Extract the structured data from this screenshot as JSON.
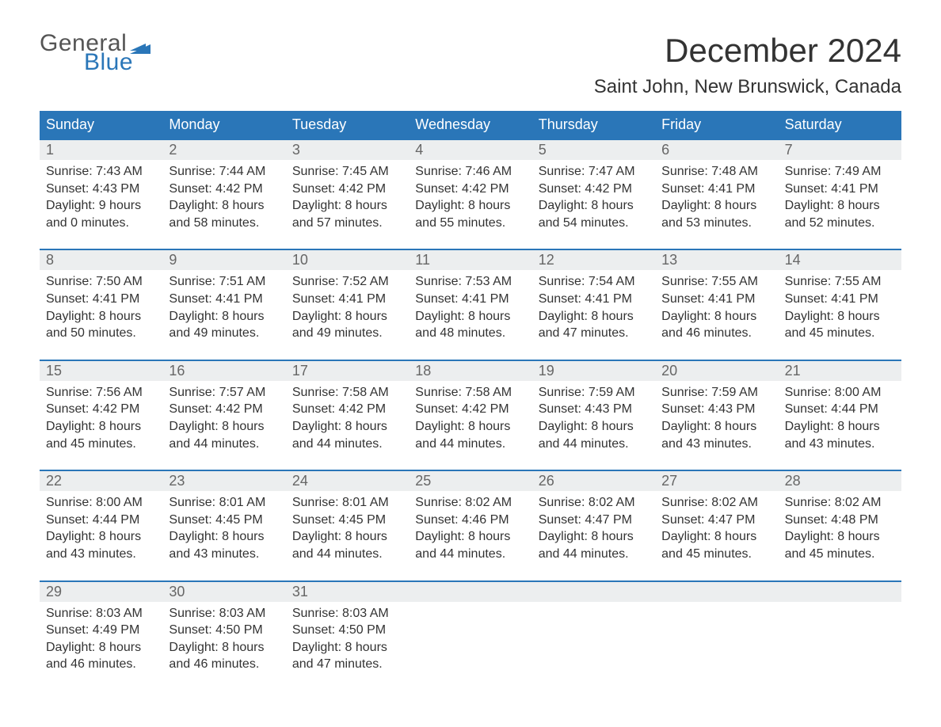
{
  "logo": {
    "word1": "General",
    "word2": "Blue",
    "flag_color": "#2a76b8"
  },
  "title": "December 2024",
  "location": "Saint John, New Brunswick, Canada",
  "colors": {
    "header_bg": "#2a76b8",
    "daynum_bg": "#eceeef",
    "text": "#333333",
    "muted": "#666666",
    "background": "#ffffff"
  },
  "weekdays": [
    "Sunday",
    "Monday",
    "Tuesday",
    "Wednesday",
    "Thursday",
    "Friday",
    "Saturday"
  ],
  "weeks": [
    [
      {
        "n": "1",
        "sunrise": "Sunrise: 7:43 AM",
        "sunset": "Sunset: 4:43 PM",
        "d1": "Daylight: 9 hours",
        "d2": "and 0 minutes."
      },
      {
        "n": "2",
        "sunrise": "Sunrise: 7:44 AM",
        "sunset": "Sunset: 4:42 PM",
        "d1": "Daylight: 8 hours",
        "d2": "and 58 minutes."
      },
      {
        "n": "3",
        "sunrise": "Sunrise: 7:45 AM",
        "sunset": "Sunset: 4:42 PM",
        "d1": "Daylight: 8 hours",
        "d2": "and 57 minutes."
      },
      {
        "n": "4",
        "sunrise": "Sunrise: 7:46 AM",
        "sunset": "Sunset: 4:42 PM",
        "d1": "Daylight: 8 hours",
        "d2": "and 55 minutes."
      },
      {
        "n": "5",
        "sunrise": "Sunrise: 7:47 AM",
        "sunset": "Sunset: 4:42 PM",
        "d1": "Daylight: 8 hours",
        "d2": "and 54 minutes."
      },
      {
        "n": "6",
        "sunrise": "Sunrise: 7:48 AM",
        "sunset": "Sunset: 4:41 PM",
        "d1": "Daylight: 8 hours",
        "d2": "and 53 minutes."
      },
      {
        "n": "7",
        "sunrise": "Sunrise: 7:49 AM",
        "sunset": "Sunset: 4:41 PM",
        "d1": "Daylight: 8 hours",
        "d2": "and 52 minutes."
      }
    ],
    [
      {
        "n": "8",
        "sunrise": "Sunrise: 7:50 AM",
        "sunset": "Sunset: 4:41 PM",
        "d1": "Daylight: 8 hours",
        "d2": "and 50 minutes."
      },
      {
        "n": "9",
        "sunrise": "Sunrise: 7:51 AM",
        "sunset": "Sunset: 4:41 PM",
        "d1": "Daylight: 8 hours",
        "d2": "and 49 minutes."
      },
      {
        "n": "10",
        "sunrise": "Sunrise: 7:52 AM",
        "sunset": "Sunset: 4:41 PM",
        "d1": "Daylight: 8 hours",
        "d2": "and 49 minutes."
      },
      {
        "n": "11",
        "sunrise": "Sunrise: 7:53 AM",
        "sunset": "Sunset: 4:41 PM",
        "d1": "Daylight: 8 hours",
        "d2": "and 48 minutes."
      },
      {
        "n": "12",
        "sunrise": "Sunrise: 7:54 AM",
        "sunset": "Sunset: 4:41 PM",
        "d1": "Daylight: 8 hours",
        "d2": "and 47 minutes."
      },
      {
        "n": "13",
        "sunrise": "Sunrise: 7:55 AM",
        "sunset": "Sunset: 4:41 PM",
        "d1": "Daylight: 8 hours",
        "d2": "and 46 minutes."
      },
      {
        "n": "14",
        "sunrise": "Sunrise: 7:55 AM",
        "sunset": "Sunset: 4:41 PM",
        "d1": "Daylight: 8 hours",
        "d2": "and 45 minutes."
      }
    ],
    [
      {
        "n": "15",
        "sunrise": "Sunrise: 7:56 AM",
        "sunset": "Sunset: 4:42 PM",
        "d1": "Daylight: 8 hours",
        "d2": "and 45 minutes."
      },
      {
        "n": "16",
        "sunrise": "Sunrise: 7:57 AM",
        "sunset": "Sunset: 4:42 PM",
        "d1": "Daylight: 8 hours",
        "d2": "and 44 minutes."
      },
      {
        "n": "17",
        "sunrise": "Sunrise: 7:58 AM",
        "sunset": "Sunset: 4:42 PM",
        "d1": "Daylight: 8 hours",
        "d2": "and 44 minutes."
      },
      {
        "n": "18",
        "sunrise": "Sunrise: 7:58 AM",
        "sunset": "Sunset: 4:42 PM",
        "d1": "Daylight: 8 hours",
        "d2": "and 44 minutes."
      },
      {
        "n": "19",
        "sunrise": "Sunrise: 7:59 AM",
        "sunset": "Sunset: 4:43 PM",
        "d1": "Daylight: 8 hours",
        "d2": "and 44 minutes."
      },
      {
        "n": "20",
        "sunrise": "Sunrise: 7:59 AM",
        "sunset": "Sunset: 4:43 PM",
        "d1": "Daylight: 8 hours",
        "d2": "and 43 minutes."
      },
      {
        "n": "21",
        "sunrise": "Sunrise: 8:00 AM",
        "sunset": "Sunset: 4:44 PM",
        "d1": "Daylight: 8 hours",
        "d2": "and 43 minutes."
      }
    ],
    [
      {
        "n": "22",
        "sunrise": "Sunrise: 8:00 AM",
        "sunset": "Sunset: 4:44 PM",
        "d1": "Daylight: 8 hours",
        "d2": "and 43 minutes."
      },
      {
        "n": "23",
        "sunrise": "Sunrise: 8:01 AM",
        "sunset": "Sunset: 4:45 PM",
        "d1": "Daylight: 8 hours",
        "d2": "and 43 minutes."
      },
      {
        "n": "24",
        "sunrise": "Sunrise: 8:01 AM",
        "sunset": "Sunset: 4:45 PM",
        "d1": "Daylight: 8 hours",
        "d2": "and 44 minutes."
      },
      {
        "n": "25",
        "sunrise": "Sunrise: 8:02 AM",
        "sunset": "Sunset: 4:46 PM",
        "d1": "Daylight: 8 hours",
        "d2": "and 44 minutes."
      },
      {
        "n": "26",
        "sunrise": "Sunrise: 8:02 AM",
        "sunset": "Sunset: 4:47 PM",
        "d1": "Daylight: 8 hours",
        "d2": "and 44 minutes."
      },
      {
        "n": "27",
        "sunrise": "Sunrise: 8:02 AM",
        "sunset": "Sunset: 4:47 PM",
        "d1": "Daylight: 8 hours",
        "d2": "and 45 minutes."
      },
      {
        "n": "28",
        "sunrise": "Sunrise: 8:02 AM",
        "sunset": "Sunset: 4:48 PM",
        "d1": "Daylight: 8 hours",
        "d2": "and 45 minutes."
      }
    ],
    [
      {
        "n": "29",
        "sunrise": "Sunrise: 8:03 AM",
        "sunset": "Sunset: 4:49 PM",
        "d1": "Daylight: 8 hours",
        "d2": "and 46 minutes."
      },
      {
        "n": "30",
        "sunrise": "Sunrise: 8:03 AM",
        "sunset": "Sunset: 4:50 PM",
        "d1": "Daylight: 8 hours",
        "d2": "and 46 minutes."
      },
      {
        "n": "31",
        "sunrise": "Sunrise: 8:03 AM",
        "sunset": "Sunset: 4:50 PM",
        "d1": "Daylight: 8 hours",
        "d2": "and 47 minutes."
      },
      null,
      null,
      null,
      null
    ]
  ]
}
